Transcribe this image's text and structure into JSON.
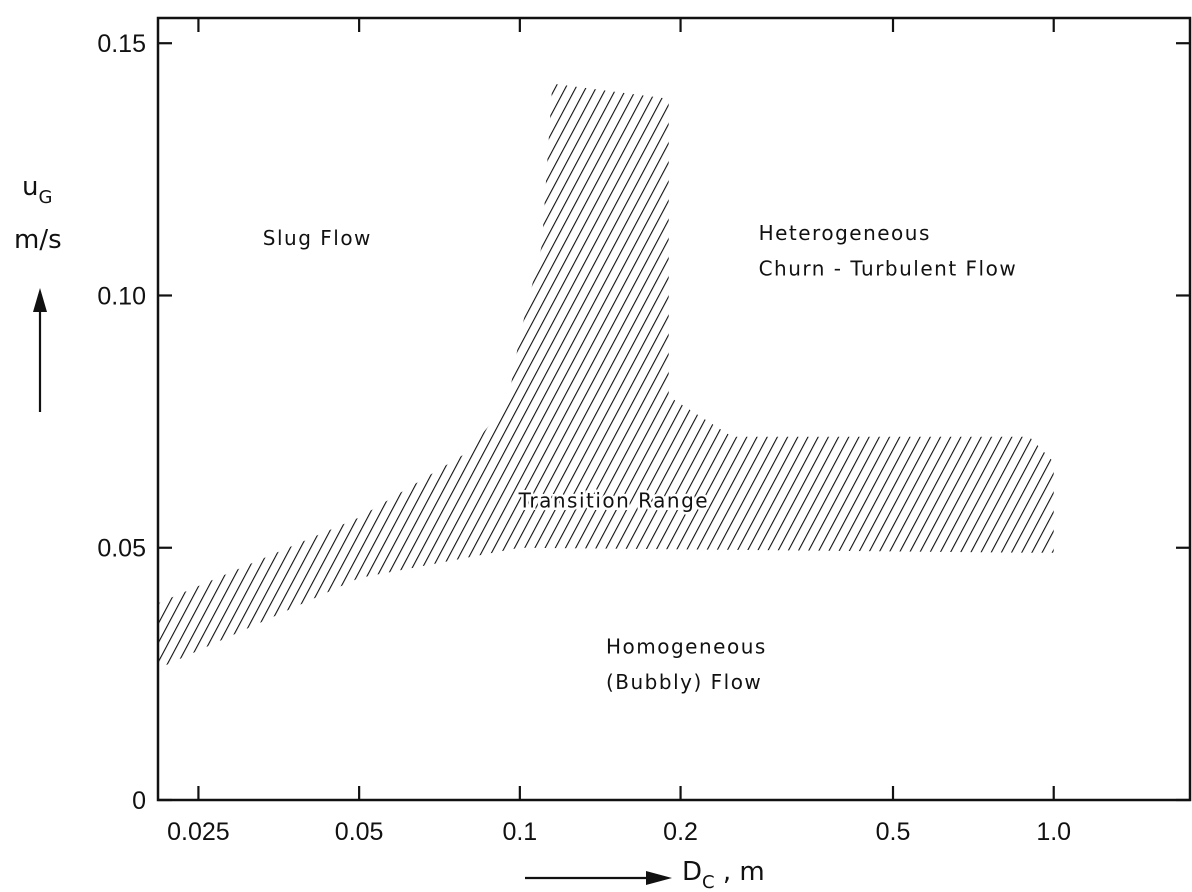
{
  "chart_data": {
    "type": "area",
    "xscale": "log",
    "xlim": [
      0.021,
      1.8
    ],
    "ylim": [
      0,
      0.155
    ],
    "x_ticks": [
      {
        "value": 0.025,
        "label": "0.025"
      },
      {
        "value": 0.05,
        "label": "0.05"
      },
      {
        "value": 0.1,
        "label": "0.1"
      },
      {
        "value": 0.2,
        "label": "0.2"
      },
      {
        "value": 0.5,
        "label": "0.5"
      },
      {
        "value": 1.0,
        "label": "1.0"
      }
    ],
    "y_ticks": [
      {
        "value": 0,
        "label": "0"
      },
      {
        "value": 0.05,
        "label": "0.05"
      },
      {
        "value": 0.1,
        "label": "0.10"
      },
      {
        "value": 0.15,
        "label": "0.15"
      }
    ],
    "xlabel": {
      "main": "D",
      "sub": "C",
      "rest": " ,  m"
    },
    "ylabel": {
      "main": "u",
      "sub": "G",
      "unit": "m/s"
    },
    "grid": false,
    "transition_band": {
      "name": "Transition Range",
      "upper_boundary": [
        {
          "x": 0.021,
          "y": 0.039
        },
        {
          "x": 0.05,
          "y": 0.056
        },
        {
          "x": 0.08,
          "y": 0.069
        },
        {
          "x": 0.095,
          "y": 0.079
        },
        {
          "x": 0.1,
          "y": 0.092
        },
        {
          "x": 0.11,
          "y": 0.11
        },
        {
          "x": 0.115,
          "y": 0.142
        },
        {
          "x": 0.19,
          "y": 0.139
        },
        {
          "x": 0.19,
          "y": 0.08
        },
        {
          "x": 0.25,
          "y": 0.072
        },
        {
          "x": 0.9,
          "y": 0.072
        },
        {
          "x": 1.0,
          "y": 0.067
        }
      ],
      "lower_boundary": [
        {
          "x": 1.0,
          "y": 0.049
        },
        {
          "x": 0.9,
          "y": 0.049
        },
        {
          "x": 0.1,
          "y": 0.05
        },
        {
          "x": 0.05,
          "y": 0.044
        },
        {
          "x": 0.021,
          "y": 0.026
        }
      ]
    },
    "region_labels": [
      {
        "text": "Slug Flow",
        "x": 0.033,
        "y": 0.11
      },
      {
        "text": "Heterogeneous",
        "x": 0.28,
        "y": 0.111
      },
      {
        "text": "Churn - Turbulent Flow",
        "x": 0.28,
        "y": 0.104
      },
      {
        "text": "Transition Range",
        "x": 0.1,
        "y": 0.058
      },
      {
        "text": "Homogeneous",
        "x": 0.145,
        "y": 0.029
      },
      {
        "text": "(Bubbly) Flow",
        "x": 0.145,
        "y": 0.022
      }
    ]
  }
}
